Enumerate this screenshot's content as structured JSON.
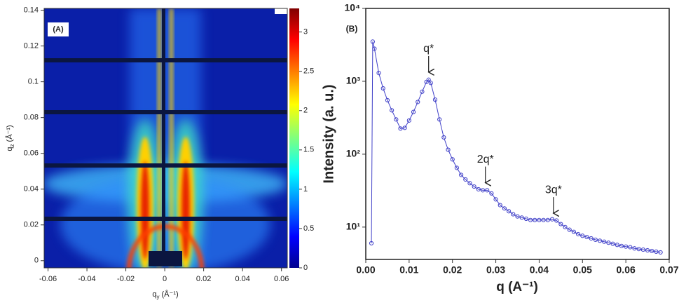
{
  "chart_data": [
    {
      "type": "heatmap",
      "label": "(A)",
      "xlabel": {
        "base": "q",
        "sub": "y",
        "unit": " (Å⁻¹)"
      },
      "ylabel": {
        "base": "q",
        "sub": "z",
        "unit": " (Å⁻¹)"
      },
      "xlim": [
        -0.062,
        0.063
      ],
      "ylim": [
        -0.004,
        0.141
      ],
      "xticks": [
        -0.06,
        -0.04,
        -0.02,
        0,
        0.02,
        0.04,
        0.06
      ],
      "yticks": [
        0,
        0.02,
        0.04,
        0.06,
        0.08,
        0.1,
        0.12,
        0.14
      ],
      "colorbar": {
        "clim": [
          0,
          3.3
        ],
        "ticks": [
          0,
          0.5,
          1,
          1.5,
          2,
          2.5,
          3
        ],
        "colormap": "jet"
      }
    },
    {
      "type": "scatter",
      "label": "(B)",
      "xlabel": "q (A⁻¹)",
      "ylabel": "Intensity (a. u.)",
      "log_y": true,
      "xlim": [
        0,
        0.07
      ],
      "ylim": [
        3.6,
        10000
      ],
      "xticks": [
        {
          "value": 0,
          "label": "0.00"
        },
        0.01,
        0.02,
        0.03,
        0.04,
        0.05,
        0.06,
        0.07
      ],
      "yticks": [
        {
          "value": 10,
          "label": "10¹"
        },
        {
          "value": 100,
          "label": "10²"
        },
        {
          "value": 1000,
          "label": "10³"
        },
        {
          "value": 10000,
          "label": "10⁴"
        }
      ],
      "series": [
        {
          "color": "#4040c8",
          "x": [
            0.0013,
            0.0016,
            0.002,
            0.003,
            0.004,
            0.005,
            0.006,
            0.007,
            0.008,
            0.009,
            0.01,
            0.011,
            0.012,
            0.013,
            0.014,
            0.0145,
            0.015,
            0.016,
            0.017,
            0.018,
            0.019,
            0.02,
            0.021,
            0.022,
            0.023,
            0.024,
            0.025,
            0.026,
            0.027,
            0.028,
            0.029,
            0.03,
            0.031,
            0.032,
            0.033,
            0.034,
            0.035,
            0.036,
            0.037,
            0.038,
            0.039,
            0.04,
            0.041,
            0.042,
            0.043,
            0.044,
            0.045,
            0.046,
            0.047,
            0.048,
            0.049,
            0.05,
            0.051,
            0.052,
            0.053,
            0.054,
            0.055,
            0.056,
            0.057,
            0.058,
            0.059,
            0.06,
            0.061,
            0.062,
            0.063,
            0.064,
            0.065,
            0.066,
            0.067,
            0.068
          ],
          "values": [
            6,
            3500,
            2800,
            1300,
            800,
            550,
            400,
            300,
            225,
            230,
            290,
            380,
            520,
            720,
            980,
            1050,
            950,
            560,
            300,
            170,
            115,
            85,
            65,
            52,
            45,
            40,
            36,
            33,
            32,
            32,
            29,
            24,
            20,
            18,
            16.5,
            15,
            14,
            13.5,
            13,
            12.5,
            12.5,
            12.5,
            12.5,
            12.5,
            12.8,
            12.3,
            11,
            10,
            9.2,
            8.6,
            8,
            7.6,
            7.3,
            7,
            6.7,
            6.5,
            6.3,
            6.1,
            5.9,
            5.7,
            5.5,
            5.4,
            5.3,
            5.1,
            5,
            4.9,
            4.8,
            4.7,
            4.6,
            4.5
          ]
        }
      ],
      "annotations": [
        {
          "text": "q*",
          "x": 0.0145,
          "y": 1250
        },
        {
          "text": "2q*",
          "x": 0.0276,
          "y": 38
        },
        {
          "text": "3q*",
          "x": 0.0433,
          "y": 14.5
        }
      ]
    }
  ]
}
